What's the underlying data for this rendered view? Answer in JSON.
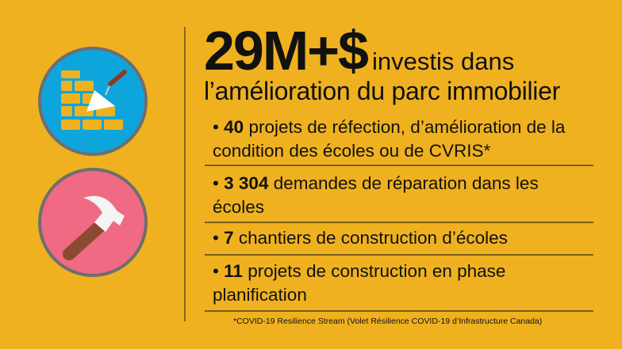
{
  "headline": {
    "amount": "29M+$",
    "tail": "investis dans",
    "line2": "l’amélioration du parc immobilier"
  },
  "items": [
    {
      "bold": "40",
      "text": " projets de réfection, d’amélioration de la condition des écoles ou de CVRIS*"
    },
    {
      "bold": "3 304",
      "text": " demandes de réparation dans les écoles"
    },
    {
      "bold": "7",
      "text": " chantiers de construction d’écoles"
    },
    {
      "bold": "11",
      "text": " projets de construction en phase planification"
    }
  ],
  "bullet": "•",
  "footnote": "*COVID-19 Resilience Stream (Volet Résilience COVID-19 d’Infrastructure Canada)",
  "icons": [
    "brick-wall-trowel-icon",
    "hammer-icon"
  ],
  "colors": {
    "background": "#efb11f",
    "blue_circle": "#0ea5dd",
    "pink_circle": "#ef6a82",
    "circle_border": "#6d6e70"
  }
}
